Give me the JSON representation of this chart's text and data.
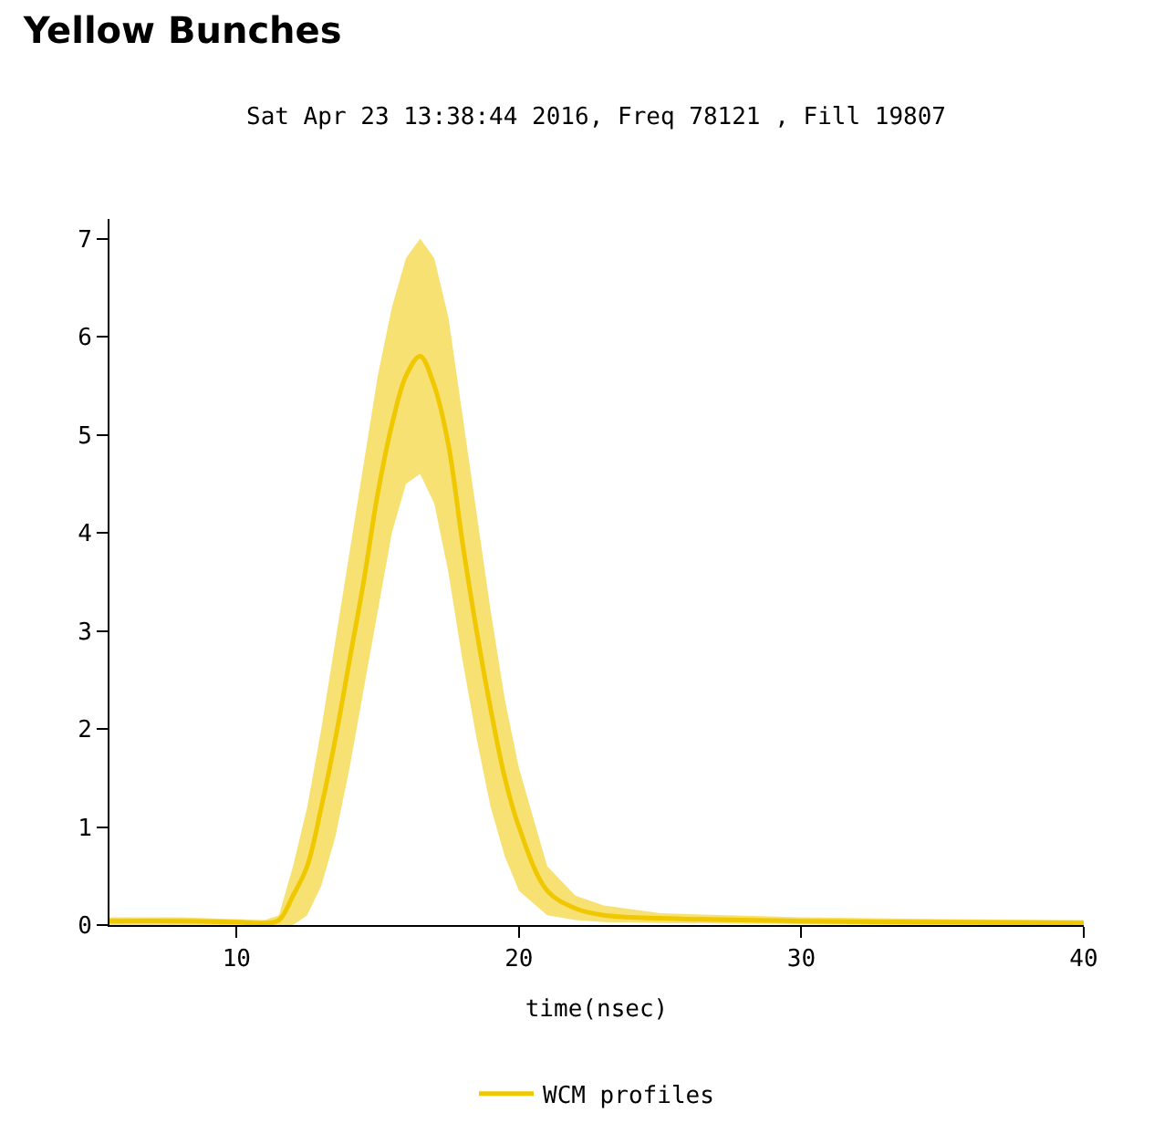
{
  "chart_data": {
    "type": "line",
    "title": "Yellow Bunches",
    "subtitle": "Sat Apr 23 13:38:44 2016, Freq 78121 , Fill 19807",
    "xlabel": "time(nsec)",
    "x": [
      5.5,
      8,
      10,
      11,
      11.5,
      12,
      12.5,
      13,
      13.5,
      14,
      14.5,
      15,
      15.5,
      16,
      16.5,
      17,
      17.5,
      18,
      18.5,
      19,
      19.5,
      20,
      21,
      22,
      23,
      25,
      30,
      35,
      40
    ],
    "series": [
      {
        "name": "WCM profiles",
        "color": "#f0c800",
        "values": [
          0.04,
          0.04,
          0.03,
          0.02,
          0.05,
          0.3,
          0.6,
          1.2,
          1.9,
          2.7,
          3.5,
          4.4,
          5.1,
          5.6,
          5.8,
          5.5,
          4.9,
          3.9,
          3.0,
          2.2,
          1.5,
          1.0,
          0.35,
          0.17,
          0.1,
          0.07,
          0.04,
          0.03,
          0.02
        ],
        "lower": [
          0,
          0,
          0,
          0,
          0,
          0,
          0.1,
          0.4,
          0.9,
          1.6,
          2.4,
          3.2,
          4.0,
          4.5,
          4.6,
          4.3,
          3.6,
          2.7,
          1.9,
          1.2,
          0.7,
          0.35,
          0.1,
          0.05,
          0.03,
          0.02,
          0.01,
          0,
          0
        ],
        "upper": [
          0.08,
          0.08,
          0.06,
          0.05,
          0.1,
          0.6,
          1.2,
          2.0,
          2.9,
          3.8,
          4.7,
          5.6,
          6.3,
          6.8,
          7.0,
          6.8,
          6.2,
          5.2,
          4.2,
          3.2,
          2.3,
          1.6,
          0.6,
          0.3,
          0.2,
          0.12,
          0.08,
          0.06,
          0.05
        ]
      }
    ],
    "xlim": [
      5.5,
      40
    ],
    "xticks": [
      10,
      20,
      30,
      40
    ],
    "ylim": [
      0,
      7.2
    ],
    "yticks": [
      0,
      1,
      2,
      3,
      4,
      5,
      6,
      7
    ],
    "legend": "bottom",
    "line_style": "solid",
    "marker": "none"
  }
}
